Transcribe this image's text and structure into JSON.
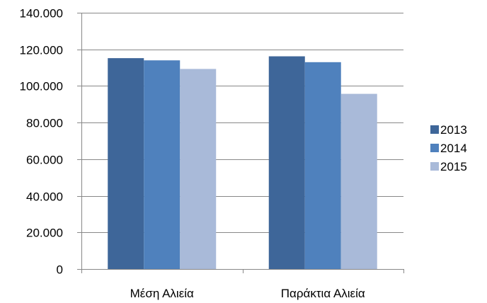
{
  "chart_data": {
    "type": "bar",
    "categories": [
      "Μέση Αλιεία",
      "Παράκτια Αλιεία"
    ],
    "series": [
      {
        "name": "2013",
        "values": [
          115200,
          116200
        ],
        "color": "#3E6699"
      },
      {
        "name": "2014",
        "values": [
          114000,
          113000
        ],
        "color": "#4F81BD"
      },
      {
        "name": "2015",
        "values": [
          109300,
          95700
        ],
        "color": "#A9BAD9"
      }
    ],
    "ylim": [
      0,
      140000
    ],
    "yticks": [
      0,
      20000,
      40000,
      60000,
      80000,
      100000,
      120000,
      140000
    ],
    "ytick_labels": [
      "0",
      "20.000",
      "40.000",
      "60.000",
      "80.000",
      "100.000",
      "120.000",
      "140.000"
    ],
    "grid": true,
    "legend_position": "right",
    "title": "",
    "xlabel": "",
    "ylabel": ""
  },
  "colors": {
    "gridline": "#888888",
    "axis": "#888888"
  }
}
